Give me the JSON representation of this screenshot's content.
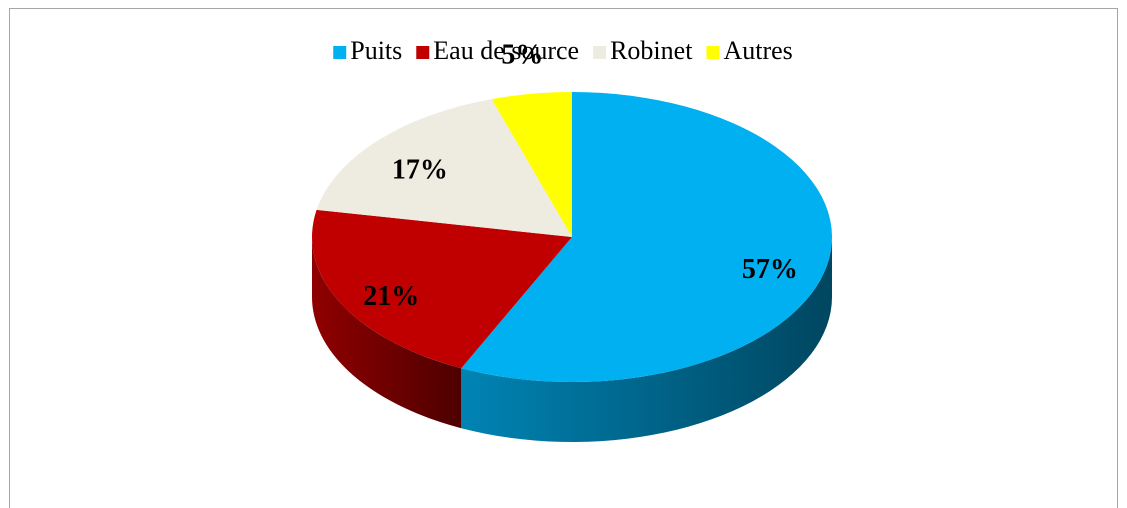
{
  "chart_data": {
    "type": "pie",
    "categories": [
      "Puits",
      "Eau de source",
      "Robinet",
      "Autres"
    ],
    "values": [
      57,
      21,
      17,
      5
    ],
    "value_labels": [
      "57%",
      "21%",
      "17%",
      "5%"
    ],
    "colors": [
      "#00b0f0",
      "#c00000",
      "#eeece1",
      "#ffff00"
    ],
    "legend": "top"
  }
}
